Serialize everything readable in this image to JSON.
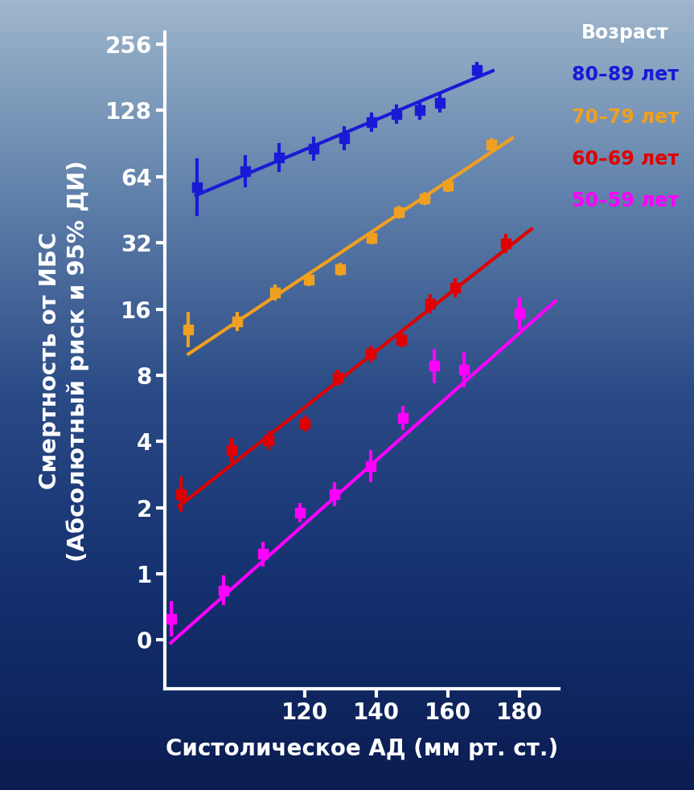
{
  "chart_data": {
    "type": "scatter",
    "xlabel": "Систолическое АД (мм рт. ст.)",
    "ylabel": "Смертность от ИБС\n(Абсолютный риск и 95% ДИ)",
    "log": "y",
    "legend": "upper right",
    "legend_title": "Возраст",
    "xlim": [
      81,
      191
    ],
    "xticks": [
      120,
      140,
      160,
      180
    ],
    "ylim": [
      0.3,
      290
    ],
    "yticks": [
      {
        "value": 0.5,
        "label": "0"
      },
      1,
      2,
      4,
      8,
      16,
      32,
      64,
      128,
      256
    ],
    "series": [
      {
        "name": "80–89 лет",
        "color": "#1a1ad6",
        "marker": "square",
        "x": [
          90.1,
          103.4,
          113.0,
          122.5,
          131.0,
          138.7,
          145.8,
          152.1,
          157.8,
          168.1
        ],
        "values": [
          57.3,
          67.8,
          78.2,
          85.8,
          95.7,
          113,
          123,
          128.4,
          138.5,
          195.6
        ],
        "ci_low": [
          42.3,
          57.3,
          67.2,
          75.6,
          84.3,
          102.2,
          111.2,
          116.1,
          125.2,
          179.8
        ],
        "ci_high": [
          77.6,
          80.2,
          90.9,
          97.4,
          108.6,
          125.0,
          136.0,
          142.0,
          153.2,
          212.8
        ],
        "fit_x": [
          89.7,
          172.6
        ],
        "fit_values": [
          52.7,
          194
        ]
      },
      {
        "name": "70–79 лет",
        "color": "#f0a020",
        "marker": "square",
        "x": [
          87.6,
          101.3,
          111.7,
          121.3,
          129.9,
          138.7,
          146.3,
          153.5,
          160.0,
          172.1
        ],
        "values": [
          12.9,
          14.06,
          19.0,
          21.8,
          24.3,
          33.7,
          44.1,
          50.9,
          58.3,
          89.4
        ],
        "ci_low": [
          10.7,
          12.7,
          17.5,
          20.4,
          22.7,
          31.5,
          41.2,
          47.6,
          54.5,
          83.6
        ],
        "ci_high": [
          15.5,
          15.6,
          20.7,
          23.3,
          26.0,
          36.1,
          47.2,
          54.5,
          62.4,
          95.7
        ],
        "fit_x": [
          87.6,
          178.0
        ],
        "fit_values": [
          10.0,
          95.7
        ]
      },
      {
        "name": "60–69 лет",
        "color": "#e00000",
        "marker": "square",
        "x": [
          85.4,
          99.6,
          109.9,
          120,
          129.4,
          138.4,
          147.0,
          155.1,
          162.2,
          176.2
        ],
        "values": [
          2.3,
          3.66,
          4.05,
          4.83,
          7.8,
          10.0,
          11.6,
          16.9,
          20.0,
          31.8
        ],
        "ci_low": [
          1.91,
          3.22,
          3.66,
          4.44,
          7.17,
          9.19,
          10.7,
          15.3,
          18.1,
          28.8
        ],
        "ci_high": [
          2.77,
          4.15,
          4.48,
          5.26,
          8.49,
          10.9,
          12.6,
          18.7,
          22.1,
          35.2
        ],
        "fit_x": [
          84.9,
          183.4
        ],
        "fit_values": [
          2.03,
          37.0
        ]
      },
      {
        "name": "50–59 лет",
        "color": "#ff00ff",
        "marker": "square",
        "x": [
          82.7,
          97.3,
          108.3,
          118.7,
          128.5,
          138.4,
          147.6,
          156.2,
          164.5,
          180.0
        ],
        "values": [
          0.625,
          0.84,
          1.23,
          1.9,
          2.3,
          3.09,
          5.12,
          8.85,
          8.48,
          15.3
        ],
        "ci_low": [
          0.52,
          0.72,
          1.08,
          1.72,
          2.03,
          2.61,
          4.51,
          7.36,
          7.05,
          12.9
        ],
        "ci_high": [
          0.75,
          0.98,
          1.4,
          2.1,
          2.61,
          3.66,
          5.81,
          10.6,
          10.2,
          18.1
        ],
        "fit_x": [
          82.7,
          190.1
        ],
        "fit_values": [
          0.486,
          17.4
        ]
      }
    ]
  }
}
